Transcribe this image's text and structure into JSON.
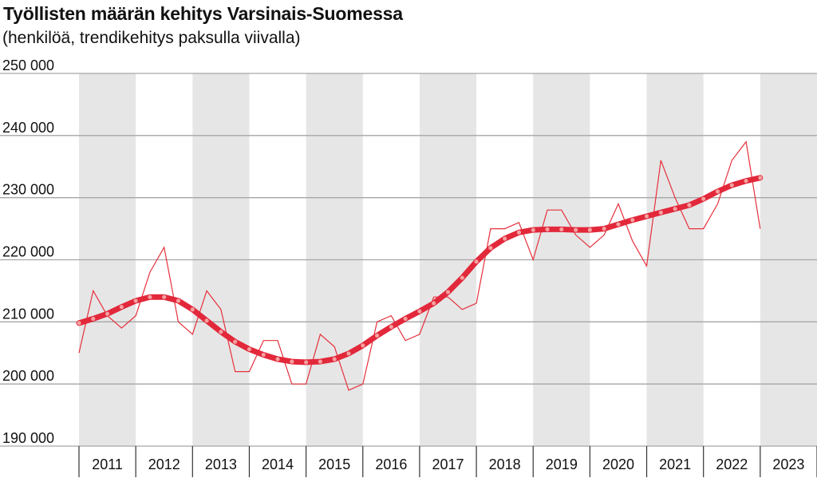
{
  "title": "Työllisten määrän kehitys Varsinais-Suomessa",
  "subtitle": "(henkilöä, trendikehitys paksulla viivalla)",
  "colors": {
    "band": "#e6e6e6",
    "grid": "#a6a6a6",
    "raw_line": "#e6303c",
    "trend_line": "#e2283a",
    "trend_dots": "#f4a0a0"
  },
  "chart_data": {
    "type": "line",
    "title": "Työllisten määrän kehitys Varsinais-Suomessa",
    "subtitle": "(henkilöä, trendikehitys paksulla viivalla)",
    "xlabel": "",
    "ylabel": "",
    "ylim": [
      190000,
      250000
    ],
    "yticks": [
      250000,
      240000,
      230000,
      220000,
      210000,
      200000,
      190000
    ],
    "ytick_labels": [
      "250 000",
      "240 000",
      "230 000",
      "220 000",
      "210 000",
      "200 000",
      "190 000"
    ],
    "xlim": [
      2011,
      2024
    ],
    "years": [
      "2011",
      "2012",
      "2013",
      "2014",
      "2015",
      "2016",
      "2017",
      "2018",
      "2019",
      "2020",
      "2021",
      "2022",
      "2023"
    ],
    "grid": "horizontal",
    "alternating_year_bands": true,
    "series": [
      {
        "style": "thin",
        "x": [
          2011.0,
          2011.25,
          2011.5,
          2011.75,
          2012.0,
          2012.25,
          2012.5,
          2012.75,
          2013.0,
          2013.25,
          2013.5,
          2013.75,
          2014.0,
          2014.25,
          2014.5,
          2014.75,
          2015.0,
          2015.25,
          2015.5,
          2015.75,
          2016.0,
          2016.25,
          2016.5,
          2016.75,
          2017.0,
          2017.25,
          2017.5,
          2017.75,
          2018.0,
          2018.25,
          2018.5,
          2018.75,
          2019.0,
          2019.25,
          2019.5,
          2019.75,
          2020.0,
          2020.25,
          2020.5,
          2020.75,
          2021.0,
          2021.25,
          2021.5,
          2021.75,
          2022.0,
          2022.25,
          2022.5,
          2022.75,
          2023.0
        ],
        "values": [
          205000,
          215000,
          211000,
          209000,
          211000,
          218000,
          222000,
          210000,
          208000,
          215000,
          212000,
          202000,
          202000,
          207000,
          207000,
          200000,
          200000,
          208000,
          206000,
          199000,
          200000,
          210000,
          211000,
          207000,
          208000,
          214000,
          214000,
          212000,
          213000,
          225000,
          225000,
          226000,
          220000,
          228000,
          228000,
          224000,
          222000,
          224000,
          229000,
          223000,
          219000,
          236000,
          230000,
          225000,
          225000,
          229000,
          236000,
          239000,
          225000
        ]
      },
      {
        "style": "thick-trend",
        "x": [
          2011.0,
          2011.25,
          2011.5,
          2011.75,
          2012.0,
          2012.25,
          2012.5,
          2012.75,
          2013.0,
          2013.25,
          2013.5,
          2013.75,
          2014.0,
          2014.25,
          2014.5,
          2014.75,
          2015.0,
          2015.25,
          2015.5,
          2015.75,
          2016.0,
          2016.25,
          2016.5,
          2016.75,
          2017.0,
          2017.25,
          2017.5,
          2017.75,
          2018.0,
          2018.25,
          2018.5,
          2018.75,
          2019.0,
          2019.25,
          2019.5,
          2019.75,
          2020.0,
          2020.25,
          2020.5,
          2020.75,
          2021.0,
          2021.25,
          2021.5,
          2021.75,
          2022.0,
          2022.25,
          2022.5,
          2022.75,
          2023.0
        ],
        "values": [
          209800,
          210500,
          211300,
          212400,
          213400,
          214000,
          214000,
          213400,
          212000,
          210200,
          208400,
          206800,
          205600,
          204700,
          204000,
          203600,
          203500,
          203600,
          204000,
          204900,
          206200,
          207800,
          209200,
          210500,
          211700,
          213000,
          214800,
          217100,
          219700,
          221900,
          223400,
          224400,
          224800,
          224900,
          224900,
          224800,
          224800,
          225000,
          225700,
          226400,
          227000,
          227600,
          228200,
          228800,
          229800,
          231000,
          232000,
          232700,
          233200
        ]
      }
    ]
  }
}
